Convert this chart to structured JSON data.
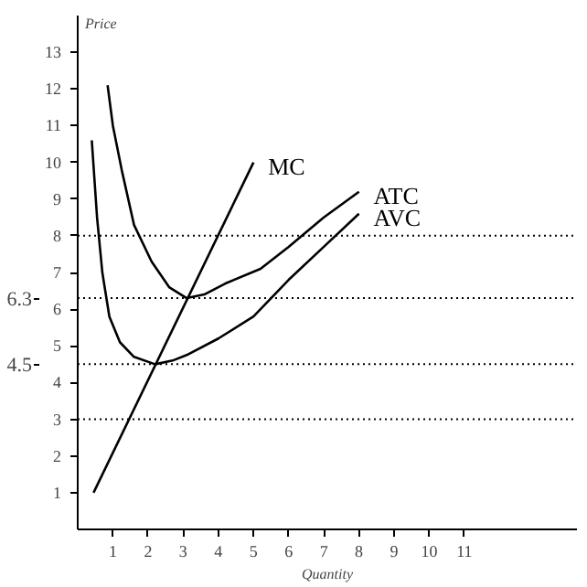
{
  "chart_data": {
    "type": "line",
    "xlabel": "Quantity",
    "ylabel": "Price",
    "xlim": [
      0,
      14.2
    ],
    "ylim": [
      0,
      14
    ],
    "xticks": [
      1,
      2,
      3,
      4,
      5,
      6,
      7,
      8,
      9,
      10,
      11
    ],
    "yticks": [
      1,
      2,
      3,
      4,
      5,
      6,
      7,
      8,
      9,
      10,
      11,
      12,
      13
    ],
    "legend": false,
    "marker": "none",
    "line_style": "solid",
    "ref_lines": [
      {
        "axis": "y",
        "value": 8,
        "line_style": "dotted",
        "color": "#000000"
      },
      {
        "axis": "y",
        "value": 6.3,
        "label": "6.3",
        "line_style": "dotted",
        "color": "#000000"
      },
      {
        "axis": "y",
        "value": 4.5,
        "label": "4.5",
        "line_style": "dotted",
        "color": "#000000"
      },
      {
        "axis": "y",
        "value": 3,
        "line_style": "dotted",
        "color": "#000000"
      }
    ],
    "series": [
      {
        "name": "MC",
        "color": "#000000",
        "x": [
          0.45,
          5.0
        ],
        "values": [
          1,
          10
        ]
      },
      {
        "name": "ATC",
        "color": "#000000",
        "x": [
          0.85,
          1.0,
          1.25,
          1.6,
          2.1,
          2.6,
          3.1,
          3.6,
          4.2,
          5.2,
          6,
          7,
          8
        ],
        "values": [
          12.1,
          11,
          9.8,
          8.3,
          7.3,
          6.6,
          6.3,
          6.4,
          6.7,
          7.1,
          7.7,
          8.5,
          9.2
        ]
      },
      {
        "name": "AVC",
        "color": "#000000",
        "x": [
          0.4,
          0.55,
          0.7,
          0.9,
          1.2,
          1.6,
          2.2,
          2.7,
          3.1,
          4,
          5,
          6,
          7,
          8
        ],
        "values": [
          10.6,
          8.5,
          7,
          5.8,
          5.1,
          4.7,
          4.5,
          4.6,
          4.75,
          5.2,
          5.8,
          6.8,
          7.7,
          8.6
        ]
      }
    ]
  }
}
